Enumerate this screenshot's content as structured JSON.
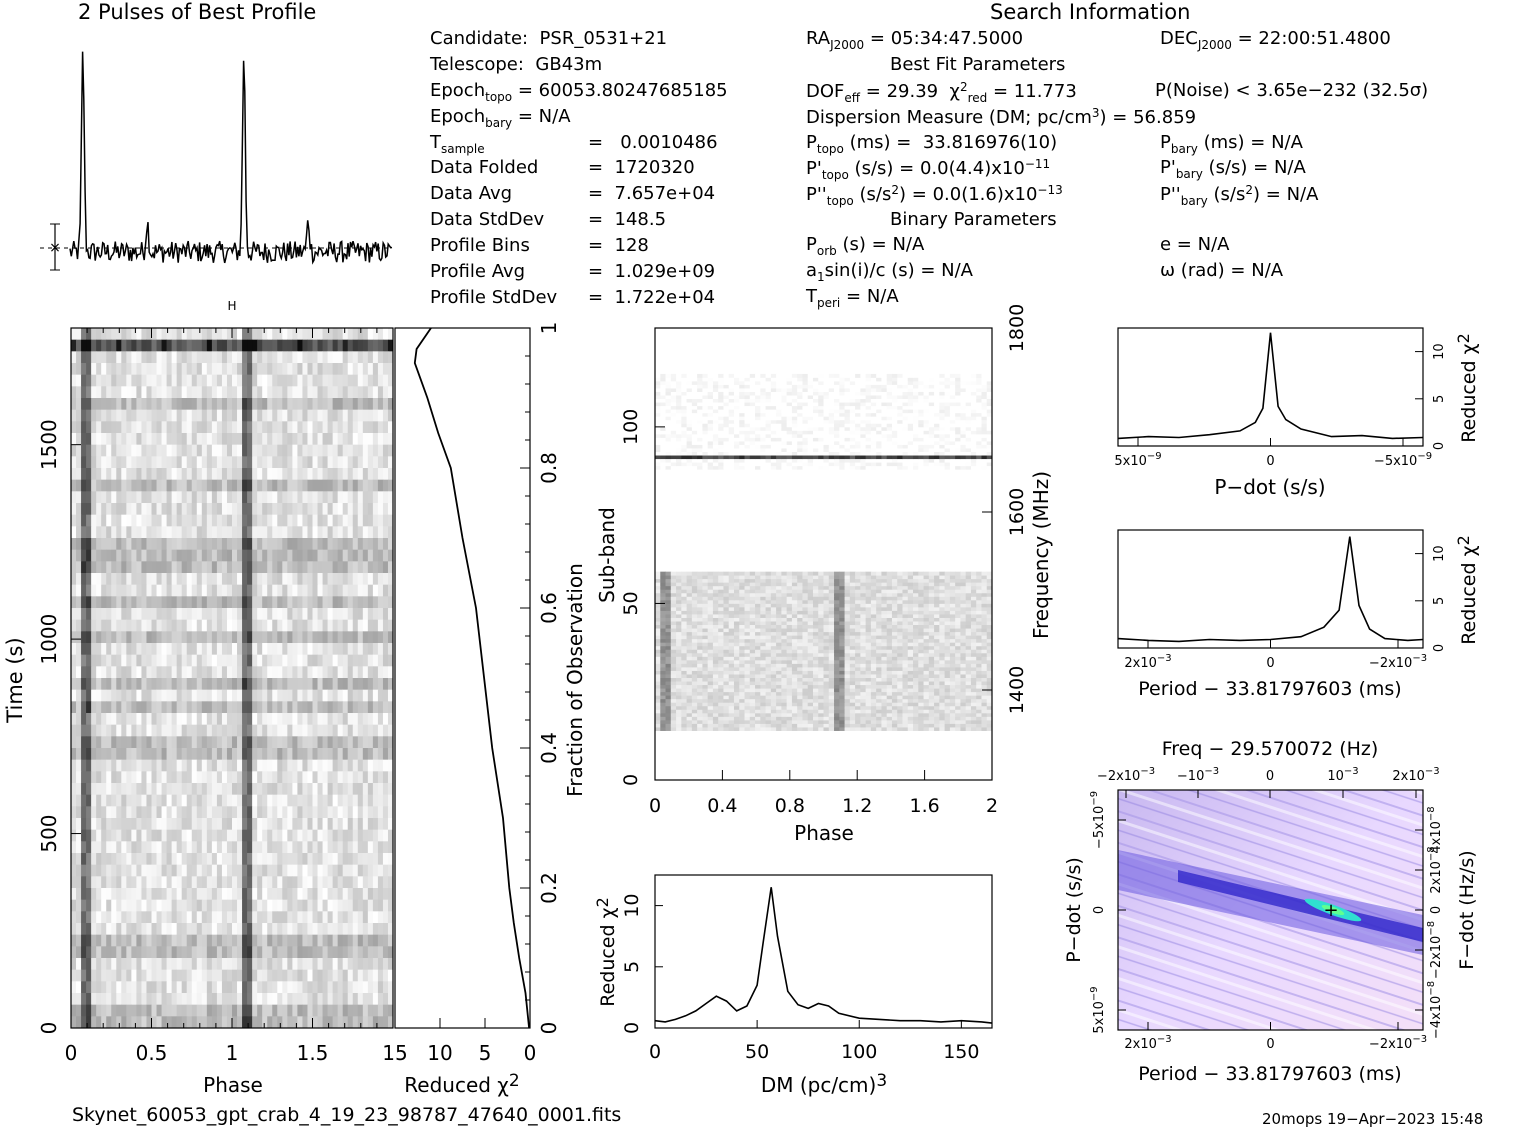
{
  "header": {
    "profile_title": "2 Pulses of Best Profile",
    "search_title": "Search Information",
    "best_fit_title": "Best Fit Parameters",
    "binary_title": "Binary Parameters"
  },
  "info_left": [
    {
      "label": "Candidate:",
      "value": "PSR_0531+21"
    },
    {
      "label": "Telescope:",
      "value": "GB43m"
    }
  ],
  "epoch_topo": "60053.80247685185",
  "epoch_bary": "N/A",
  "stats": [
    {
      "label": "Data Folded",
      "value": "1720320"
    },
    {
      "label": "Data Avg",
      "value": "7.657e+04"
    },
    {
      "label": "Data StdDev",
      "value": "148.5"
    },
    {
      "label": "Profile Bins",
      "value": "128"
    },
    {
      "label": "Profile Avg",
      "value": "1.029e+09"
    },
    {
      "label": "Profile StdDev",
      "value": "1.722e+04"
    }
  ],
  "t_sample": "0.0010486",
  "ra": "05:34:47.5000",
  "dec": "22:00:51.4800",
  "dof_eff": "29.39",
  "chi2_red": "11.773",
  "p_noise": "P(Noise) < 3.65e−232  (32.5σ)",
  "dm_value": "56.859",
  "p_topo": "33.816976(10)",
  "p_bary": "N/A",
  "pdot_topo": "0.0(4.4)x10",
  "pdot_topo_exp": "−11",
  "pdot_bary": "N/A",
  "pddot_topo": "0.0(1.6)x10",
  "pddot_topo_exp": "−13",
  "pddot_bary": "N/A",
  "p_orb": "N/A",
  "e": "N/A",
  "a1sini": "N/A",
  "omega": "N/A",
  "t_peri": "N/A",
  "footer": {
    "filename": "Skynet_60053_gpt_crab_4_19_23_98787_47640_0001.fits",
    "stamp": "20mops 19−Apr−2023 15:48"
  },
  "chart_data": [
    {
      "type": "line",
      "name": "profile",
      "title": "2 Pulses of Best Profile",
      "xlim": [
        0,
        2
      ],
      "peaks_at_phase": [
        0.08,
        1.08
      ]
    },
    {
      "type": "heatmap",
      "name": "time-phase",
      "xlabel": "Phase",
      "ylabel": "Time (s)",
      "xlim": [
        0,
        2
      ],
      "ylim": [
        0,
        1800
      ],
      "x_ticks": [
        "0",
        "0.5",
        "1",
        "1.5"
      ],
      "y_ticks": [
        "0",
        "500",
        "1000",
        "1500"
      ],
      "right_axis_label": "Fraction of Observation",
      "right_ticks": [
        "0",
        "0.2",
        "0.4",
        "0.6",
        "0.8",
        "1"
      ]
    },
    {
      "type": "line",
      "name": "chi2-vs-time",
      "xlabel": "Reduced χ²",
      "xlim": [
        15,
        0
      ],
      "x_ticks": [
        "15",
        "10",
        "5",
        "0"
      ],
      "y": [
        0,
        0.05,
        0.1,
        0.15,
        0.2,
        0.3,
        0.4,
        0.5,
        0.6,
        0.7,
        0.8,
        0.85,
        0.9,
        0.95,
        0.97,
        1
      ],
      "x": [
        0.1,
        0.5,
        1.2,
        1.8,
        2.3,
        3.0,
        4.2,
        5.1,
        6.0,
        7.5,
        8.8,
        10.2,
        11.4,
        12.8,
        12.6,
        11
      ]
    },
    {
      "type": "heatmap",
      "name": "subband-phase",
      "xlabel": "Phase",
      "ylabel": "Sub-band",
      "right_axis_label": "Frequency (MHz)",
      "xlim": [
        0,
        2
      ],
      "ylim": [
        0,
        128
      ],
      "x_ticks": [
        "0",
        "0.4",
        "0.8",
        "1.2",
        "1.6",
        "2"
      ],
      "y_ticks": [
        "0",
        "50",
        "100"
      ],
      "right_ticks": [
        "1400",
        "1600",
        "1800"
      ]
    },
    {
      "type": "line",
      "name": "dm-chi2",
      "xlabel": "DM (pc/cm³)",
      "ylabel": "Reduced χ²",
      "xlim": [
        0,
        165
      ],
      "ylim": [
        0,
        12.5
      ],
      "x_ticks": [
        "0",
        "50",
        "100",
        "150"
      ],
      "y_ticks": [
        "0",
        "5",
        "10"
      ],
      "x": [
        0,
        5,
        10,
        15,
        20,
        25,
        30,
        35,
        40,
        45,
        50,
        53,
        56.9,
        60,
        65,
        70,
        75,
        80,
        85,
        90,
        100,
        110,
        120,
        130,
        140,
        150,
        160,
        165
      ],
      "y": [
        0.6,
        0.5,
        0.7,
        1.0,
        1.4,
        2.0,
        2.6,
        2.2,
        1.4,
        1.8,
        3.5,
        7.0,
        11.5,
        7.5,
        3.0,
        1.9,
        1.6,
        2.0,
        1.8,
        1.2,
        0.8,
        0.7,
        0.6,
        0.6,
        0.5,
        0.6,
        0.5,
        0.4
      ]
    },
    {
      "type": "line",
      "name": "pdot-chi2",
      "xlabel": "P−dot (s/s)",
      "ylabel": "Reduced χ²",
      "x_ticks": [
        "5x10",
        "0",
        "−5x10"
      ],
      "x_tick_exp": "−9",
      "y_ticks": [
        "0",
        "5",
        "10"
      ],
      "ylim": [
        0,
        12.5
      ],
      "x": [
        -1.0,
        -0.8,
        -0.6,
        -0.4,
        -0.2,
        -0.1,
        -0.05,
        0,
        0.05,
        0.1,
        0.2,
        0.4,
        0.6,
        0.8,
        1.0
      ],
      "y": [
        0.8,
        1.0,
        0.9,
        1.2,
        1.6,
        2.5,
        4.0,
        12.0,
        4.2,
        2.8,
        1.8,
        1.0,
        1.1,
        0.8,
        0.9
      ]
    },
    {
      "type": "line",
      "name": "period-chi2",
      "xlabel": "Period − 33.81797603 (ms)",
      "ylabel": "Reduced χ²",
      "x_ticks": [
        "2x10",
        "0",
        "−2x10"
      ],
      "x_tick_exp": "−3",
      "y_ticks": [
        "0",
        "5",
        "10"
      ],
      "ylim": [
        0,
        12.5
      ],
      "x": [
        -1.0,
        -0.8,
        -0.6,
        -0.4,
        -0.2,
        0,
        0.2,
        0.35,
        0.45,
        0.52,
        0.58,
        0.65,
        0.75,
        0.9,
        1.0
      ],
      "y": [
        1.0,
        0.8,
        0.7,
        0.9,
        0.8,
        0.9,
        1.2,
        2.2,
        4.0,
        11.8,
        4.5,
        2.0,
        1.0,
        0.8,
        0.9
      ]
    },
    {
      "type": "heatmap",
      "name": "period-pdot",
      "title": "Freq − 29.570072 (Hz)",
      "xlabel": "Period − 33.81797603 (ms)",
      "ylabel": "P−dot (s/s)",
      "right_axis_label": "F−dot (Hz/s)",
      "bottom_ticks": [
        "2x10",
        "0",
        "−2x10"
      ],
      "top_ticks": [
        "−2x10",
        "−10",
        "0",
        "10",
        "2x10"
      ],
      "left_ticks": [
        "−5x10",
        "0",
        "5x10"
      ],
      "right_ticks": [
        "4x10",
        "2x10",
        "0",
        "−2x10",
        "−4x10"
      ],
      "best_point": [
        0.48,
        0
      ]
    }
  ]
}
